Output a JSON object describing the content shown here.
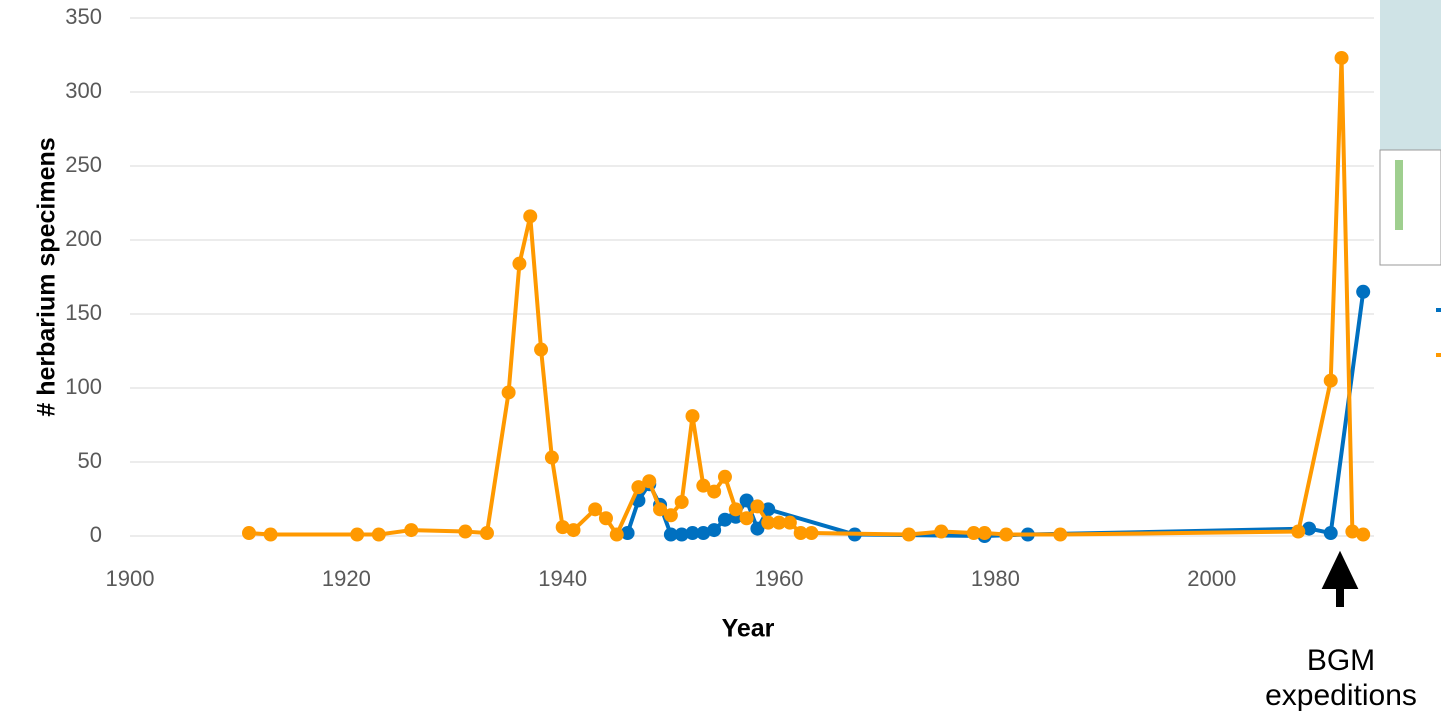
{
  "chart_data": {
    "type": "line",
    "xlabel": "Year",
    "ylabel": "# herbarium specimens",
    "annotation": [
      "BGM",
      "expeditions"
    ],
    "xlim": [
      1900,
      2015
    ],
    "xticks": [
      1900,
      1920,
      1940,
      1960,
      1980,
      2000
    ],
    "ylim": [
      0,
      350
    ],
    "yticks": [
      0,
      50,
      100,
      150,
      200,
      250,
      300,
      350
    ],
    "grid": true,
    "series": [
      {
        "color": "#0070c0",
        "x": [
          1946,
          1947,
          1948,
          1949,
          1950,
          1951,
          1952,
          1953,
          1954,
          1955,
          1956,
          1957,
          1958,
          1959,
          1967,
          1979,
          1983,
          2009,
          2011,
          2014
        ],
        "values": [
          2,
          24,
          35,
          21,
          1,
          1,
          2,
          2,
          4,
          11,
          13,
          24,
          5,
          18,
          1,
          0,
          1,
          5,
          2,
          165
        ]
      },
      {
        "color": "#ff9900",
        "x": [
          1911,
          1913,
          1921,
          1923,
          1926,
          1931,
          1933,
          1935,
          1936,
          1937,
          1938,
          1939,
          1940,
          1941,
          1943,
          1944,
          1945,
          1947,
          1948,
          1949,
          1950,
          1951,
          1952,
          1953,
          1954,
          1955,
          1956,
          1957,
          1958,
          1959,
          1960,
          1961,
          1962,
          1963,
          1972,
          1975,
          1978,
          1979,
          1981,
          1986,
          2008,
          2011,
          2012,
          2013,
          2014
        ],
        "values": [
          2,
          1,
          1,
          1,
          4,
          3,
          2,
          97,
          184,
          216,
          126,
          53,
          6,
          4,
          18,
          12,
          1,
          33,
          37,
          18,
          14,
          23,
          81,
          34,
          30,
          40,
          18,
          12,
          20,
          9,
          9,
          9,
          2,
          2,
          1,
          3,
          2,
          2,
          1,
          1,
          3,
          105,
          323,
          3,
          1
        ]
      }
    ]
  }
}
